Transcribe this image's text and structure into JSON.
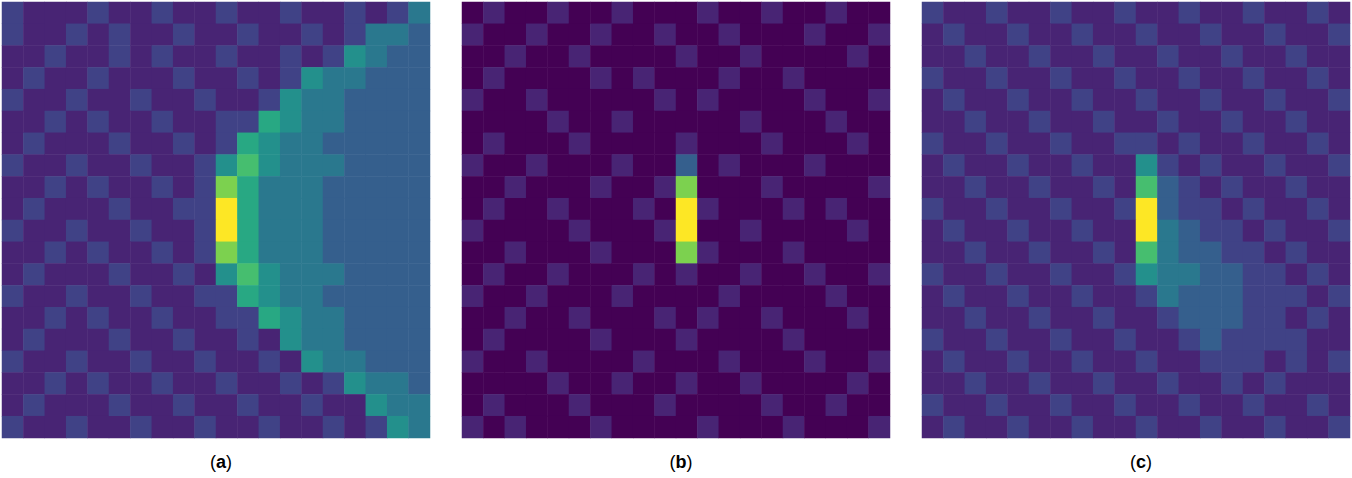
{
  "chart_data": [
    {
      "type": "heatmap",
      "title": "(a)",
      "color": "viridis",
      "tick_labels": false,
      "color_range": [
        0,
        10
      ],
      "cells": [
        [
          2,
          1,
          1,
          1,
          2,
          1,
          1,
          2,
          1,
          1,
          2,
          1,
          1,
          2,
          1,
          1,
          2,
          1,
          2,
          4
        ],
        [
          2,
          1,
          1,
          2,
          1,
          2,
          1,
          1,
          2,
          1,
          1,
          2,
          1,
          1,
          2,
          1,
          2,
          4,
          4,
          3
        ],
        [
          1,
          1,
          2,
          1,
          1,
          2,
          1,
          2,
          1,
          1,
          2,
          1,
          1,
          2,
          1,
          2,
          5,
          4,
          3,
          3
        ],
        [
          1,
          2,
          1,
          1,
          2,
          1,
          1,
          1,
          2,
          1,
          1,
          2,
          1,
          2,
          5,
          4,
          4,
          3,
          3,
          3
        ],
        [
          2,
          1,
          1,
          2,
          1,
          1,
          2,
          1,
          1,
          2,
          1,
          1,
          2,
          5,
          4,
          4,
          3,
          3,
          3,
          3
        ],
        [
          1,
          1,
          2,
          1,
          2,
          1,
          1,
          2,
          1,
          1,
          2,
          2,
          6,
          5,
          4,
          4,
          3,
          3,
          3,
          3
        ],
        [
          1,
          2,
          1,
          1,
          1,
          2,
          1,
          1,
          2,
          1,
          2,
          6,
          5,
          4,
          4,
          3,
          3,
          3,
          3,
          3
        ],
        [
          2,
          1,
          1,
          2,
          1,
          1,
          2,
          1,
          1,
          2,
          5,
          7,
          5,
          4,
          4,
          4,
          3,
          3,
          3,
          3
        ],
        [
          1,
          1,
          2,
          1,
          2,
          1,
          1,
          2,
          1,
          2,
          8,
          6,
          4,
          4,
          4,
          3,
          3,
          3,
          3,
          3
        ],
        [
          1,
          2,
          1,
          1,
          1,
          2,
          1,
          1,
          2,
          2,
          10,
          6,
          4,
          4,
          4,
          3,
          3,
          3,
          3,
          3
        ],
        [
          2,
          1,
          1,
          2,
          1,
          1,
          2,
          1,
          1,
          2,
          10,
          6,
          4,
          4,
          4,
          3,
          3,
          3,
          3,
          3
        ],
        [
          1,
          1,
          2,
          1,
          2,
          1,
          1,
          2,
          1,
          2,
          8,
          6,
          4,
          4,
          4,
          3,
          3,
          3,
          3,
          3
        ],
        [
          1,
          2,
          1,
          1,
          1,
          2,
          1,
          1,
          2,
          1,
          5,
          7,
          5,
          4,
          4,
          4,
          3,
          3,
          3,
          3
        ],
        [
          2,
          1,
          1,
          2,
          1,
          1,
          2,
          1,
          1,
          2,
          2,
          6,
          5,
          4,
          4,
          3,
          3,
          3,
          3,
          3
        ],
        [
          1,
          1,
          2,
          1,
          2,
          1,
          1,
          2,
          1,
          1,
          2,
          2,
          6,
          5,
          4,
          4,
          3,
          3,
          3,
          3
        ],
        [
          1,
          2,
          1,
          1,
          1,
          2,
          1,
          1,
          2,
          1,
          1,
          2,
          1,
          5,
          4,
          4,
          3,
          3,
          3,
          3
        ],
        [
          2,
          1,
          1,
          2,
          1,
          1,
          2,
          1,
          1,
          2,
          1,
          1,
          2,
          1,
          5,
          4,
          4,
          3,
          3,
          3
        ],
        [
          1,
          1,
          2,
          1,
          2,
          1,
          1,
          2,
          1,
          1,
          2,
          1,
          1,
          2,
          1,
          2,
          5,
          4,
          4,
          3
        ],
        [
          1,
          2,
          1,
          1,
          1,
          2,
          1,
          1,
          2,
          1,
          1,
          2,
          1,
          1,
          2,
          1,
          1,
          5,
          4,
          4
        ],
        [
          2,
          1,
          1,
          2,
          1,
          1,
          2,
          1,
          1,
          2,
          1,
          1,
          2,
          1,
          1,
          2,
          1,
          2,
          5,
          4
        ]
      ]
    },
    {
      "type": "heatmap",
      "title": "(b)",
      "color": "viridis",
      "tick_labels": false,
      "color_range": [
        0,
        10
      ],
      "cells": [
        [
          0,
          1,
          0,
          0,
          1,
          0,
          0,
          1,
          0,
          0,
          0,
          1,
          0,
          0,
          1,
          0,
          0,
          1,
          0,
          0
        ],
        [
          1,
          0,
          0,
          1,
          0,
          0,
          1,
          0,
          0,
          1,
          0,
          0,
          1,
          0,
          0,
          0,
          1,
          0,
          0,
          1
        ],
        [
          0,
          0,
          1,
          0,
          0,
          1,
          0,
          0,
          0,
          0,
          1,
          0,
          0,
          1,
          0,
          0,
          0,
          0,
          1,
          0
        ],
        [
          0,
          1,
          0,
          0,
          0,
          0,
          1,
          0,
          1,
          0,
          0,
          0,
          1,
          0,
          0,
          1,
          0,
          0,
          0,
          0
        ],
        [
          1,
          0,
          0,
          1,
          0,
          0,
          0,
          0,
          0,
          1,
          0,
          1,
          0,
          0,
          0,
          0,
          1,
          0,
          0,
          1
        ],
        [
          0,
          0,
          0,
          0,
          1,
          0,
          0,
          1,
          0,
          0,
          0,
          0,
          0,
          1,
          0,
          0,
          0,
          1,
          0,
          0
        ],
        [
          0,
          1,
          0,
          0,
          0,
          1,
          0,
          0,
          0,
          0,
          1,
          0,
          0,
          0,
          1,
          0,
          0,
          0,
          1,
          0
        ],
        [
          1,
          0,
          0,
          1,
          0,
          0,
          0,
          1,
          0,
          0,
          3,
          0,
          1,
          0,
          0,
          0,
          1,
          0,
          0,
          0
        ],
        [
          0,
          0,
          1,
          0,
          0,
          0,
          1,
          0,
          0,
          1,
          8,
          0,
          0,
          0,
          1,
          0,
          0,
          0,
          0,
          1
        ],
        [
          0,
          1,
          0,
          0,
          1,
          0,
          0,
          0,
          1,
          0,
          10,
          1,
          0,
          0,
          0,
          1,
          0,
          1,
          0,
          0
        ],
        [
          1,
          0,
          0,
          0,
          0,
          1,
          0,
          0,
          0,
          1,
          10,
          0,
          0,
          1,
          0,
          0,
          0,
          0,
          1,
          0
        ],
        [
          0,
          0,
          1,
          0,
          0,
          0,
          1,
          0,
          0,
          0,
          8,
          1,
          0,
          0,
          0,
          1,
          0,
          0,
          0,
          0
        ],
        [
          0,
          1,
          0,
          0,
          1,
          0,
          0,
          0,
          1,
          0,
          1,
          0,
          0,
          1,
          0,
          0,
          1,
          0,
          0,
          1
        ],
        [
          1,
          0,
          0,
          1,
          0,
          0,
          0,
          1,
          0,
          0,
          0,
          0,
          1,
          0,
          0,
          0,
          0,
          1,
          0,
          0
        ],
        [
          0,
          0,
          1,
          0,
          0,
          1,
          0,
          0,
          0,
          1,
          0,
          1,
          0,
          0,
          1,
          0,
          0,
          0,
          1,
          0
        ],
        [
          0,
          1,
          0,
          0,
          0,
          0,
          1,
          0,
          0,
          0,
          1,
          0,
          0,
          0,
          0,
          1,
          0,
          0,
          0,
          0
        ],
        [
          1,
          0,
          0,
          1,
          0,
          0,
          0,
          0,
          1,
          0,
          0,
          0,
          1,
          0,
          0,
          0,
          1,
          0,
          0,
          1
        ],
        [
          0,
          0,
          0,
          0,
          1,
          0,
          0,
          1,
          0,
          0,
          1,
          0,
          0,
          1,
          0,
          0,
          0,
          0,
          1,
          0
        ],
        [
          0,
          1,
          0,
          0,
          0,
          1,
          0,
          0,
          0,
          1,
          0,
          0,
          0,
          0,
          1,
          0,
          0,
          1,
          0,
          0
        ],
        [
          1,
          0,
          1,
          0,
          0,
          0,
          1,
          0,
          0,
          0,
          0,
          1,
          0,
          0,
          0,
          1,
          0,
          0,
          0,
          1
        ]
      ]
    },
    {
      "type": "heatmap",
      "title": "(c)",
      "color": "viridis",
      "tick_labels": false,
      "color_range": [
        0,
        10
      ],
      "cells": [
        [
          2,
          1,
          1,
          2,
          1,
          1,
          2,
          1,
          1,
          2,
          1,
          1,
          2,
          1,
          1,
          2,
          1,
          1,
          2,
          1
        ],
        [
          1,
          2,
          1,
          1,
          2,
          1,
          1,
          2,
          1,
          1,
          2,
          1,
          1,
          2,
          1,
          1,
          2,
          1,
          1,
          2
        ],
        [
          1,
          1,
          2,
          1,
          1,
          2,
          1,
          1,
          2,
          1,
          1,
          2,
          1,
          1,
          2,
          1,
          1,
          2,
          1,
          1
        ],
        [
          2,
          1,
          1,
          2,
          1,
          1,
          2,
          1,
          1,
          2,
          1,
          1,
          2,
          1,
          1,
          2,
          1,
          1,
          2,
          1
        ],
        [
          1,
          2,
          1,
          1,
          2,
          1,
          1,
          2,
          1,
          1,
          2,
          1,
          1,
          2,
          1,
          1,
          2,
          1,
          1,
          2
        ],
        [
          1,
          1,
          2,
          1,
          1,
          2,
          1,
          1,
          2,
          1,
          1,
          2,
          1,
          1,
          2,
          1,
          1,
          2,
          1,
          1
        ],
        [
          2,
          1,
          1,
          2,
          1,
          1,
          2,
          1,
          1,
          2,
          2,
          1,
          2,
          1,
          1,
          2,
          1,
          1,
          2,
          1
        ],
        [
          1,
          2,
          1,
          1,
          2,
          1,
          1,
          2,
          1,
          1,
          5,
          2,
          1,
          2,
          1,
          1,
          2,
          1,
          1,
          2
        ],
        [
          1,
          1,
          2,
          1,
          1,
          2,
          1,
          1,
          2,
          1,
          7,
          3,
          2,
          1,
          2,
          1,
          1,
          2,
          1,
          1
        ],
        [
          2,
          1,
          1,
          2,
          1,
          1,
          2,
          1,
          1,
          2,
          10,
          3,
          2,
          2,
          1,
          2,
          1,
          1,
          2,
          1
        ],
        [
          1,
          2,
          1,
          1,
          2,
          1,
          1,
          2,
          1,
          1,
          10,
          4,
          3,
          2,
          2,
          1,
          2,
          1,
          1,
          2
        ],
        [
          1,
          1,
          2,
          1,
          1,
          2,
          1,
          1,
          2,
          1,
          7,
          4,
          3,
          3,
          2,
          2,
          1,
          2,
          1,
          1
        ],
        [
          2,
          1,
          1,
          2,
          1,
          1,
          2,
          1,
          1,
          2,
          5,
          4,
          4,
          3,
          3,
          2,
          2,
          1,
          2,
          1
        ],
        [
          1,
          2,
          1,
          1,
          2,
          1,
          1,
          2,
          1,
          1,
          2,
          4,
          3,
          3,
          3,
          2,
          2,
          2,
          1,
          2
        ],
        [
          1,
          1,
          2,
          1,
          1,
          2,
          1,
          1,
          2,
          1,
          1,
          2,
          3,
          3,
          3,
          2,
          2,
          1,
          2,
          1
        ],
        [
          2,
          1,
          1,
          2,
          1,
          1,
          2,
          1,
          1,
          2,
          1,
          1,
          2,
          3,
          2,
          2,
          2,
          2,
          1,
          1
        ],
        [
          1,
          2,
          1,
          1,
          2,
          1,
          1,
          2,
          1,
          1,
          2,
          1,
          1,
          2,
          2,
          2,
          1,
          2,
          1,
          2
        ],
        [
          1,
          1,
          2,
          1,
          1,
          2,
          1,
          1,
          2,
          1,
          1,
          2,
          1,
          1,
          2,
          1,
          2,
          1,
          1,
          1
        ],
        [
          2,
          1,
          1,
          2,
          1,
          1,
          2,
          1,
          1,
          2,
          1,
          1,
          2,
          1,
          1,
          2,
          1,
          1,
          2,
          1
        ],
        [
          1,
          2,
          1,
          1,
          2,
          1,
          1,
          2,
          1,
          1,
          2,
          1,
          1,
          2,
          1,
          1,
          2,
          1,
          1,
          2
        ]
      ]
    }
  ]
}
